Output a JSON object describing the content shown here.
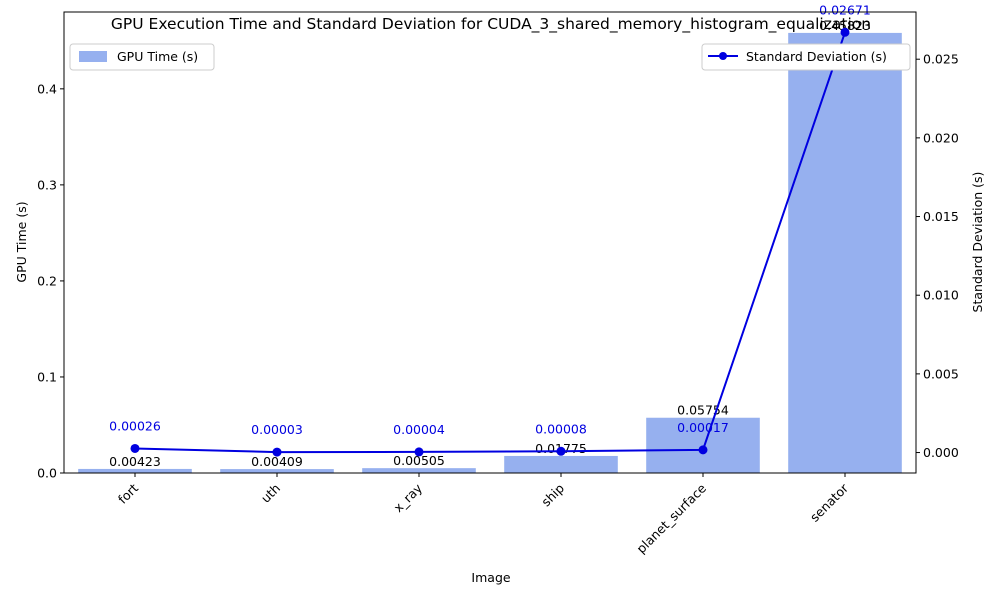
{
  "chart_data": {
    "type": "bar",
    "title": "GPU Execution Time and Standard Deviation for CUDA_3_shared_memory_histogram_equalization",
    "xlabel": "Image",
    "ylabel": "GPU Time (s)",
    "y2label": "Standard Deviation (s)",
    "categories": [
      "fort",
      "uth",
      "x_ray",
      "ship",
      "planet_surface",
      "senator"
    ],
    "series": [
      {
        "name": "GPU Time (s)",
        "type": "bar",
        "axis": "left",
        "values": [
          0.00423,
          0.00409,
          0.00505,
          0.01775,
          0.05754,
          0.45823
        ],
        "labels": [
          "0.00423",
          "0.00409",
          "0.00505",
          "0.01775",
          "0.05754",
          "0.45823"
        ],
        "color": "#6a8ee8"
      },
      {
        "name": "Standard Deviation (s)",
        "type": "line",
        "axis": "right",
        "values": [
          0.00026,
          3e-05,
          4e-05,
          8e-05,
          0.00017,
          0.02671
        ],
        "labels": [
          "0.00026",
          "0.00003",
          "0.00004",
          "0.00008",
          "0.00017",
          "0.02671"
        ],
        "color": "#0000e0"
      }
    ],
    "ylim": [
      0,
      0.48
    ],
    "y2lim": [
      -0.0013,
      0.028
    ],
    "yticks": [
      0.0,
      0.1,
      0.2,
      0.3,
      0.4
    ],
    "ytick_labels": [
      "0.0",
      "0.1",
      "0.2",
      "0.3",
      "0.4"
    ],
    "y2ticks": [
      0.0,
      0.005,
      0.01,
      0.015,
      0.02,
      0.025
    ],
    "y2tick_labels": [
      "0.000",
      "0.005",
      "0.010",
      "0.015",
      "0.020",
      "0.025"
    ],
    "legends": {
      "bar_legend": "upper-left",
      "line_legend": "upper-right"
    },
    "grid": false
  }
}
